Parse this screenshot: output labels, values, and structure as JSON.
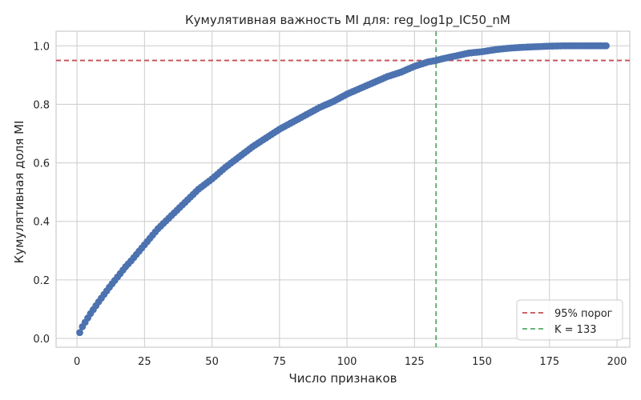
{
  "chart_data": {
    "type": "scatter",
    "title": "Кумулятивная важность MI для: reg_log1p_IC50_nM",
    "xlabel": "Число признаков",
    "ylabel": "Кумулятивная доля MI",
    "xlim": [
      -7.75,
      204.75
    ],
    "ylim": [
      -0.03,
      1.05
    ],
    "xticks": [
      "0",
      "25",
      "50",
      "75",
      "100",
      "125",
      "150",
      "175",
      "200"
    ],
    "yticks": [
      "0.0",
      "0.2",
      "0.4",
      "0.6",
      "0.8",
      "1.0"
    ],
    "xtick_values": [
      0,
      25,
      50,
      75,
      100,
      125,
      150,
      175,
      200
    ],
    "ytick_values": [
      0.0,
      0.2,
      0.4,
      0.6,
      0.8,
      1.0
    ],
    "grid": true,
    "legend_position": "bottom-right",
    "colors": {
      "points": "#4c72b0",
      "threshold": "#c44e52",
      "k_line": "#55a868",
      "grid": "#cccccc",
      "spine": "#cccccc"
    },
    "series": [
      {
        "x_start": 1,
        "x_end": 196,
        "points": [
          [
            1,
            0.02
          ],
          [
            2,
            0.04
          ],
          [
            3,
            0.055
          ],
          [
            5,
            0.085
          ],
          [
            8,
            0.125
          ],
          [
            10,
            0.15
          ],
          [
            12,
            0.175
          ],
          [
            15,
            0.21
          ],
          [
            18,
            0.245
          ],
          [
            20,
            0.265
          ],
          [
            25,
            0.32
          ],
          [
            30,
            0.375
          ],
          [
            35,
            0.42
          ],
          [
            40,
            0.465
          ],
          [
            45,
            0.51
          ],
          [
            50,
            0.545
          ],
          [
            55,
            0.585
          ],
          [
            60,
            0.62
          ],
          [
            65,
            0.655
          ],
          [
            70,
            0.685
          ],
          [
            75,
            0.715
          ],
          [
            80,
            0.74
          ],
          [
            85,
            0.765
          ],
          [
            90,
            0.79
          ],
          [
            95,
            0.81
          ],
          [
            100,
            0.835
          ],
          [
            105,
            0.855
          ],
          [
            110,
            0.875
          ],
          [
            115,
            0.895
          ],
          [
            120,
            0.91
          ],
          [
            125,
            0.93
          ],
          [
            130,
            0.945
          ],
          [
            133,
            0.95
          ],
          [
            135,
            0.955
          ],
          [
            140,
            0.965
          ],
          [
            145,
            0.975
          ],
          [
            150,
            0.98
          ],
          [
            155,
            0.987
          ],
          [
            160,
            0.992
          ],
          [
            165,
            0.995
          ],
          [
            170,
            0.997
          ],
          [
            175,
            0.999
          ],
          [
            180,
            1.0
          ],
          [
            185,
            1.0
          ],
          [
            190,
            1.0
          ],
          [
            196,
            1.0
          ]
        ]
      }
    ],
    "hlines": [
      {
        "y": 0.95,
        "label": "95% порог",
        "style": "dashed",
        "color": "#c44e52"
      }
    ],
    "vlines": [
      {
        "x": 133,
        "label": "K = 133",
        "style": "dashed",
        "color": "#55a868"
      }
    ]
  }
}
